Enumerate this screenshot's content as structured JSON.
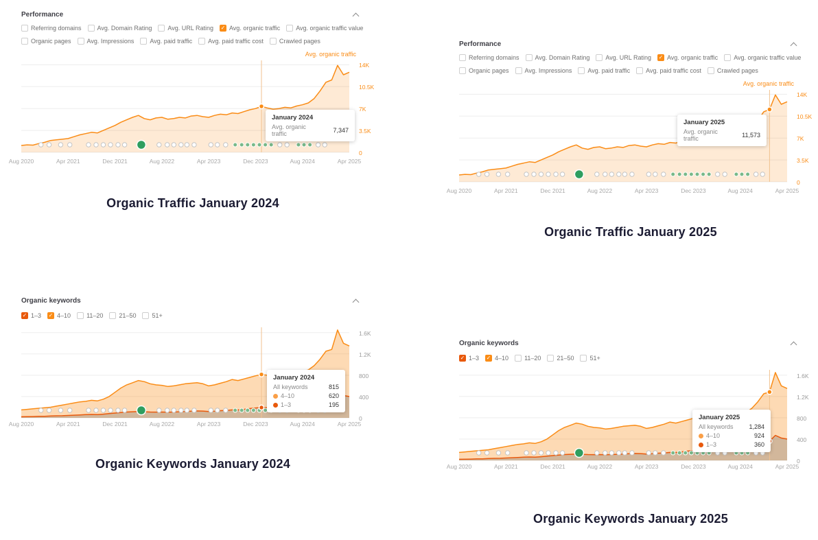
{
  "colors": {
    "accent_orange": "#fa8c16",
    "dark_orange": "#e8590c",
    "green_marker": "#2f9e5f",
    "caption_text": "#1b1b32"
  },
  "shared": {
    "x_tick_labels": [
      "Aug 2020",
      "Apr 2021",
      "Dec 2021",
      "Aug 2022",
      "Apr 2023",
      "Dec 2023",
      "Aug 2024",
      "Apr 2025"
    ],
    "event_markers": [
      {
        "f": 0.06,
        "t": "c"
      },
      {
        "f": 0.085,
        "t": "c"
      },
      {
        "f": 0.12,
        "t": "c"
      },
      {
        "f": 0.148,
        "t": "c"
      },
      {
        "f": 0.205,
        "t": "c"
      },
      {
        "f": 0.228,
        "t": "c"
      },
      {
        "f": 0.25,
        "t": "c"
      },
      {
        "f": 0.272,
        "t": "c"
      },
      {
        "f": 0.295,
        "t": "c"
      },
      {
        "f": 0.315,
        "t": "c"
      },
      {
        "f": 0.366,
        "t": "b"
      },
      {
        "f": 0.42,
        "t": "c"
      },
      {
        "f": 0.445,
        "t": "c"
      },
      {
        "f": 0.465,
        "t": "c"
      },
      {
        "f": 0.487,
        "t": "c"
      },
      {
        "f": 0.505,
        "t": "c"
      },
      {
        "f": 0.527,
        "t": "c"
      },
      {
        "f": 0.578,
        "t": "c"
      },
      {
        "f": 0.598,
        "t": "c"
      },
      {
        "f": 0.623,
        "t": "c"
      },
      {
        "f": 0.652,
        "t": "g"
      },
      {
        "f": 0.672,
        "t": "g"
      },
      {
        "f": 0.69,
        "t": "g"
      },
      {
        "f": 0.708,
        "t": "g"
      },
      {
        "f": 0.726,
        "t": "g"
      },
      {
        "f": 0.744,
        "t": "g"
      },
      {
        "f": 0.762,
        "t": "g"
      },
      {
        "f": 0.788,
        "t": "c"
      },
      {
        "f": 0.81,
        "t": "c"
      },
      {
        "f": 0.845,
        "t": "g"
      },
      {
        "f": 0.862,
        "t": "g"
      },
      {
        "f": 0.88,
        "t": "g"
      },
      {
        "f": 0.905,
        "t": "c"
      },
      {
        "f": 0.925,
        "t": "c"
      }
    ]
  },
  "panels": [
    {
      "header": "Performance",
      "checkbox_rows": [
        [
          {
            "label": "Referring domains",
            "checked": false
          },
          {
            "label": "Avg. Domain Rating",
            "checked": false
          },
          {
            "label": "Avg. URL Rating",
            "checked": false
          },
          {
            "label": "Avg. organic traffic",
            "checked": true,
            "color": "#fa8c16"
          },
          {
            "label": "Avg. organic traffic value",
            "checked": false
          }
        ],
        [
          {
            "label": "Organic pages",
            "checked": false
          },
          {
            "label": "Avg. Impressions",
            "checked": false
          },
          {
            "label": "Avg. paid traffic",
            "checked": false
          },
          {
            "label": "Avg. paid traffic cost",
            "checked": false
          },
          {
            "label": "Crawled pages",
            "checked": false
          }
        ]
      ],
      "legend": "Avg. organic traffic",
      "tooltip": {
        "title": "January 2024",
        "rows": [
          {
            "label": "Avg. organic traffic",
            "value": "7,347",
            "dot": null
          }
        ]
      },
      "caption": "Organic Traffic January 2024"
    },
    {
      "header": "Performance",
      "checkbox_rows": [
        [
          {
            "label": "Referring domains",
            "checked": false
          },
          {
            "label": "Avg. Domain Rating",
            "checked": false
          },
          {
            "label": "Avg. URL Rating",
            "checked": false
          },
          {
            "label": "Avg. organic traffic",
            "checked": true,
            "color": "#fa8c16"
          },
          {
            "label": "Avg. organic traffic value",
            "checked": false
          }
        ],
        [
          {
            "label": "Organic pages",
            "checked": false
          },
          {
            "label": "Avg. Impressions",
            "checked": false
          },
          {
            "label": "Avg. paid traffic",
            "checked": false
          },
          {
            "label": "Avg. paid traffic cost",
            "checked": false
          },
          {
            "label": "Crawled pages",
            "checked": false
          }
        ]
      ],
      "legend": "Avg. organic traffic",
      "tooltip": {
        "title": "January 2025",
        "rows": [
          {
            "label": "Avg. organic traffic",
            "value": "11,573",
            "dot": null
          }
        ]
      },
      "caption": "Organic Traffic January 2025"
    },
    {
      "header": "Organic keywords",
      "checkbox_rows": [
        [
          {
            "label": "1–3",
            "checked": true,
            "color": "#e8590c"
          },
          {
            "label": "4–10",
            "checked": true,
            "color": "#fa8c16"
          },
          {
            "label": "11–20",
            "checked": false
          },
          {
            "label": "21–50",
            "checked": false
          },
          {
            "label": "51+",
            "checked": false
          }
        ]
      ],
      "legend": null,
      "tooltip": {
        "title": "January 2024",
        "rows": [
          {
            "label": "All keywords",
            "value": "815",
            "dot": null
          },
          {
            "label": "4–10",
            "value": "620",
            "dot": "#fa9f47"
          },
          {
            "label": "1–3",
            "value": "195",
            "dot": "#e8590c"
          }
        ]
      },
      "caption": "Organic Keywords January 2024"
    },
    {
      "header": "Organic keywords",
      "checkbox_rows": [
        [
          {
            "label": "1–3",
            "checked": true,
            "color": "#e8590c"
          },
          {
            "label": "4–10",
            "checked": true,
            "color": "#fa8c16"
          },
          {
            "label": "11–20",
            "checked": false
          },
          {
            "label": "21–50",
            "checked": false
          },
          {
            "label": "51+",
            "checked": false
          }
        ]
      ],
      "legend": null,
      "tooltip": {
        "title": "January 2025",
        "rows": [
          {
            "label": "All keywords",
            "value": "1,284",
            "dot": null
          },
          {
            "label": "4–10",
            "value": "924",
            "dot": "#fa9f47"
          },
          {
            "label": "1–3",
            "value": "360",
            "dot": "#e8590c"
          }
        ]
      },
      "caption": "Organic Keywords January 2025"
    }
  ],
  "chart_data": [
    {
      "type": "area",
      "title": "Organic Traffic January 2024",
      "x_unit": "month",
      "x_start": "Aug 2020",
      "x_end": "Apr 2025",
      "x_tick_labels": [
        "Aug 2020",
        "Apr 2021",
        "Dec 2021",
        "Aug 2022",
        "Apr 2023",
        "Dec 2023",
        "Aug 2024",
        "Apr 2025"
      ],
      "y_ticks": [
        {
          "label": "14K",
          "value": 14000
        },
        {
          "label": "10.5K",
          "value": 10500
        },
        {
          "label": "7K",
          "value": 7000
        },
        {
          "label": "3.5K",
          "value": 3500
        },
        {
          "label": "0",
          "value": 0
        }
      ],
      "ylim": [
        0,
        14700
      ],
      "scale_max": 14700,
      "axis_label_color": "#fa8c16",
      "marker": {
        "index": 41,
        "label": "January 2024",
        "value": 7347
      },
      "series": [
        {
          "name": "Avg. organic traffic",
          "color": "#fa8c16",
          "fill": "rgba(250,140,22,0.18)",
          "values": [
            1100,
            1200,
            1150,
            1400,
            1600,
            1900,
            2000,
            2100,
            2200,
            2500,
            2800,
            3000,
            3200,
            3100,
            3500,
            3900,
            4300,
            4800,
            5200,
            5600,
            5900,
            5400,
            5200,
            5500,
            5600,
            5300,
            5400,
            5600,
            5500,
            5800,
            5900,
            5700,
            5600,
            5900,
            6100,
            6000,
            6300,
            6200,
            6500,
            6800,
            7000,
            7347,
            7100,
            6900,
            7000,
            7200,
            7100,
            7400,
            7600,
            7900,
            8600,
            9800,
            11200,
            11573,
            13900,
            12400,
            12800
          ]
        }
      ]
    },
    {
      "type": "area",
      "title": "Organic Traffic January 2025",
      "x_unit": "month",
      "x_start": "Aug 2020",
      "x_end": "Apr 2025",
      "x_tick_labels": [
        "Aug 2020",
        "Apr 2021",
        "Dec 2021",
        "Aug 2022",
        "Apr 2023",
        "Dec 2023",
        "Aug 2024",
        "Apr 2025"
      ],
      "y_ticks": [
        {
          "label": "14K",
          "value": 14000
        },
        {
          "label": "10.5K",
          "value": 10500
        },
        {
          "label": "7K",
          "value": 7000
        },
        {
          "label": "3.5K",
          "value": 3500
        },
        {
          "label": "0",
          "value": 0
        }
      ],
      "ylim": [
        0,
        14700
      ],
      "scale_max": 14700,
      "axis_label_color": "#fa8c16",
      "marker": {
        "index": 53,
        "label": "January 2025",
        "value": 11573
      },
      "series": [
        {
          "name": "Avg. organic traffic",
          "color": "#fa8c16",
          "fill": "rgba(250,140,22,0.18)",
          "values": [
            1100,
            1200,
            1150,
            1400,
            1600,
            1900,
            2000,
            2100,
            2200,
            2500,
            2800,
            3000,
            3200,
            3100,
            3500,
            3900,
            4300,
            4800,
            5200,
            5600,
            5900,
            5400,
            5200,
            5500,
            5600,
            5300,
            5400,
            5600,
            5500,
            5800,
            5900,
            5700,
            5600,
            5900,
            6100,
            6000,
            6300,
            6200,
            6500,
            6800,
            7000,
            7347,
            7100,
            6900,
            7000,
            7200,
            7100,
            7400,
            7600,
            7900,
            8600,
            9800,
            11200,
            11573,
            13900,
            12400,
            12800
          ]
        }
      ]
    },
    {
      "type": "area",
      "title": "Organic Keywords January 2024",
      "stacking_note": "All keywords = 1–3 + 4–10",
      "x_unit": "month",
      "x_start": "Aug 2020",
      "x_end": "Apr 2025",
      "x_tick_labels": [
        "Aug 2020",
        "Apr 2021",
        "Dec 2021",
        "Aug 2022",
        "Apr 2023",
        "Dec 2023",
        "Aug 2024",
        "Apr 2025"
      ],
      "y_ticks": [
        {
          "label": "1.6K",
          "value": 1600
        },
        {
          "label": "1.2K",
          "value": 1200
        },
        {
          "label": "800",
          "value": 800
        },
        {
          "label": "400",
          "value": 400
        },
        {
          "label": "0",
          "value": 0
        }
      ],
      "ylim": [
        0,
        1700
      ],
      "scale_max": 1700,
      "axis_label_color": "#9c9c9c",
      "marker": {
        "index": 41,
        "label": "January 2024",
        "all_keywords": 815,
        "pos_4_10": 620,
        "pos_1_3": 195
      },
      "series": [
        {
          "name": "All keywords",
          "color": "#fa8c16",
          "fill": "rgba(250,140,22,0.32)",
          "values": [
            150,
            160,
            170,
            180,
            190,
            200,
            220,
            240,
            260,
            280,
            300,
            310,
            330,
            320,
            350,
            400,
            480,
            560,
            620,
            660,
            700,
            680,
            640,
            620,
            610,
            590,
            600,
            620,
            640,
            650,
            660,
            640,
            600,
            620,
            650,
            680,
            720,
            700,
            730,
            760,
            790,
            815,
            800,
            780,
            800,
            820,
            810,
            840,
            870,
            900,
            980,
            1100,
            1250,
            1284,
            1650,
            1400,
            1350
          ]
        },
        {
          "name": "1–3",
          "color": "#e8590c",
          "fill": "rgba(128,118,108,0.35)",
          "values": [
            20,
            22,
            25,
            28,
            30,
            35,
            38,
            40,
            45,
            50,
            55,
            60,
            65,
            62,
            70,
            80,
            90,
            100,
            110,
            115,
            120,
            115,
            110,
            108,
            110,
            105,
            110,
            115,
            120,
            125,
            130,
            128,
            120,
            125,
            135,
            140,
            150,
            148,
            160,
            175,
            185,
            195,
            190,
            185,
            195,
            200,
            205,
            215,
            225,
            240,
            260,
            300,
            340,
            360,
            470,
            420,
            400
          ]
        }
      ]
    },
    {
      "type": "area",
      "title": "Organic Keywords January 2025",
      "stacking_note": "All keywords = 1–3 + 4–10",
      "x_unit": "month",
      "x_start": "Aug 2020",
      "x_end": "Apr 2025",
      "x_tick_labels": [
        "Aug 2020",
        "Apr 2021",
        "Dec 2021",
        "Aug 2022",
        "Apr 2023",
        "Dec 2023",
        "Aug 2024",
        "Apr 2025"
      ],
      "y_ticks": [
        {
          "label": "1.6K",
          "value": 1600
        },
        {
          "label": "1.2K",
          "value": 1200
        },
        {
          "label": "800",
          "value": 800
        },
        {
          "label": "400",
          "value": 400
        },
        {
          "label": "0",
          "value": 0
        }
      ],
      "ylim": [
        0,
        1700
      ],
      "scale_max": 1700,
      "axis_label_color": "#9c9c9c",
      "marker": {
        "index": 53,
        "label": "January 2025",
        "all_keywords": 1284,
        "pos_4_10": 924,
        "pos_1_3": 360
      },
      "series": [
        {
          "name": "All keywords",
          "color": "#fa8c16",
          "fill": "rgba(250,140,22,0.32)",
          "values": [
            150,
            160,
            170,
            180,
            190,
            200,
            220,
            240,
            260,
            280,
            300,
            310,
            330,
            320,
            350,
            400,
            480,
            560,
            620,
            660,
            700,
            680,
            640,
            620,
            610,
            590,
            600,
            620,
            640,
            650,
            660,
            640,
            600,
            620,
            650,
            680,
            720,
            700,
            730,
            760,
            790,
            815,
            800,
            780,
            800,
            820,
            810,
            840,
            870,
            900,
            980,
            1100,
            1250,
            1284,
            1650,
            1400,
            1350
          ]
        },
        {
          "name": "1–3",
          "color": "#e8590c",
          "fill": "rgba(128,118,108,0.35)",
          "values": [
            20,
            22,
            25,
            28,
            30,
            35,
            38,
            40,
            45,
            50,
            55,
            60,
            65,
            62,
            70,
            80,
            90,
            100,
            110,
            115,
            120,
            115,
            110,
            108,
            110,
            105,
            110,
            115,
            120,
            125,
            130,
            128,
            120,
            125,
            135,
            140,
            150,
            148,
            160,
            175,
            185,
            195,
            190,
            185,
            195,
            200,
            205,
            215,
            225,
            240,
            260,
            300,
            340,
            360,
            470,
            420,
            400
          ]
        }
      ]
    }
  ]
}
